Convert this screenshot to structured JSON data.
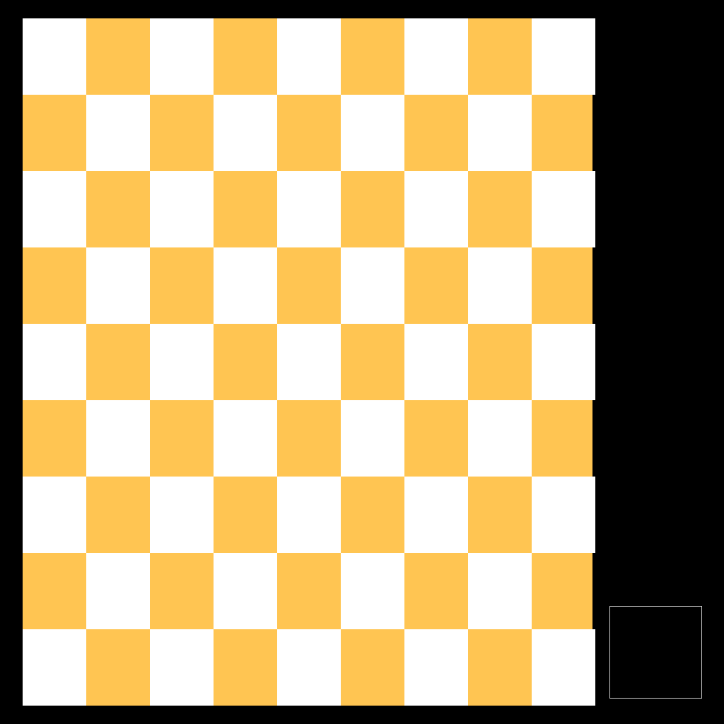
{
  "board": {
    "rows": 9,
    "cols": 9,
    "colors": {
      "light": "#ffffff",
      "dark": "#ffc552"
    },
    "first_cell": "light"
  },
  "preview": {
    "content": ""
  },
  "background_color": "#000000"
}
